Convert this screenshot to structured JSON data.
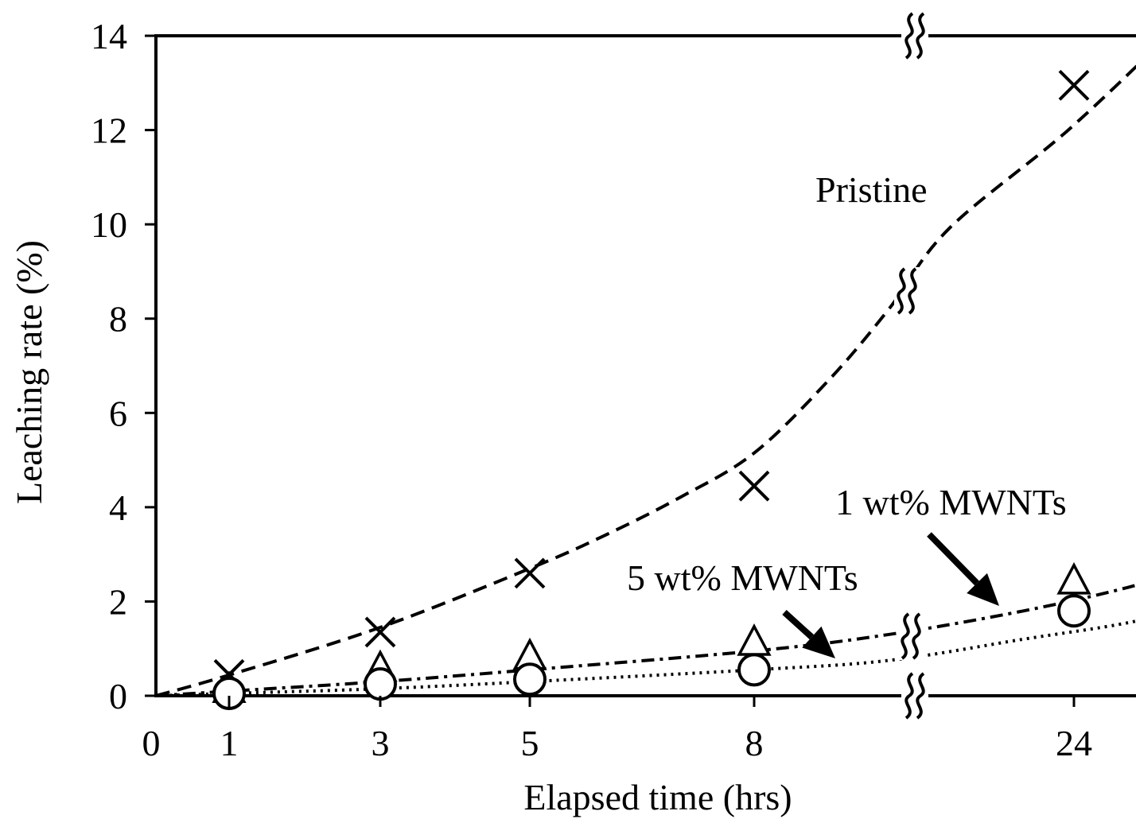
{
  "chart_data": {
    "type": "line",
    "xlabel": "Elapsed time (hrs)",
    "ylabel": "Leaching rate  (%)",
    "x_ticks": [
      "0",
      "1",
      "3",
      "5",
      "8",
      "24"
    ],
    "y_ticks": [
      "0",
      "2",
      "4",
      "6",
      "8",
      "10",
      "12",
      "14"
    ],
    "ylim": [
      0,
      14
    ],
    "x_axis_break": "between 8 and 24",
    "series": [
      {
        "name": "Pristine",
        "marker": "cross",
        "line_style": "dashed",
        "x": [
          1,
          3,
          5,
          8,
          24
        ],
        "y": [
          0.45,
          1.35,
          2.6,
          4.45,
          12.95
        ]
      },
      {
        "name": "1 wt% MWNTs",
        "marker": "triangle",
        "line_style": "dash-dot",
        "x": [
          1,
          3,
          5,
          8,
          24
        ],
        "y": [
          0.1,
          0.55,
          0.8,
          1.1,
          2.4
        ]
      },
      {
        "name": "5 wt% MWNTs",
        "marker": "circle",
        "line_style": "dotted",
        "x": [
          1,
          3,
          5,
          8,
          24
        ],
        "y": [
          0.05,
          0.25,
          0.35,
          0.55,
          1.8
        ]
      }
    ],
    "fit_curves": {
      "pristine": [
        [
          0,
          0
        ],
        [
          1,
          0.45
        ],
        [
          3,
          1.45
        ],
        [
          5,
          2.7
        ],
        [
          6,
          3.4
        ],
        [
          7,
          4.2
        ],
        [
          8,
          5.15
        ],
        [
          9,
          6.7
        ],
        [
          9.8,
          8.2
        ],
        [
          10.6,
          9.9
        ],
        [
          12.2,
          12.0
        ],
        [
          13.6,
          14.1
        ]
      ],
      "wt1": [
        [
          0,
          0
        ],
        [
          1,
          0.1
        ],
        [
          3,
          0.3
        ],
        [
          5,
          0.55
        ],
        [
          8,
          0.95
        ],
        [
          9.8,
          1.3
        ],
        [
          11.6,
          1.8
        ],
        [
          13.0,
          2.3
        ],
        [
          14.0,
          2.8
        ]
      ],
      "wt5": [
        [
          0,
          0
        ],
        [
          1,
          0.05
        ],
        [
          3,
          0.15
        ],
        [
          5,
          0.3
        ],
        [
          8,
          0.55
        ],
        [
          9.8,
          0.75
        ],
        [
          11.6,
          1.2
        ],
        [
          13.0,
          1.55
        ],
        [
          14.0,
          1.95
        ]
      ]
    },
    "grid": false,
    "legend": "none"
  }
}
